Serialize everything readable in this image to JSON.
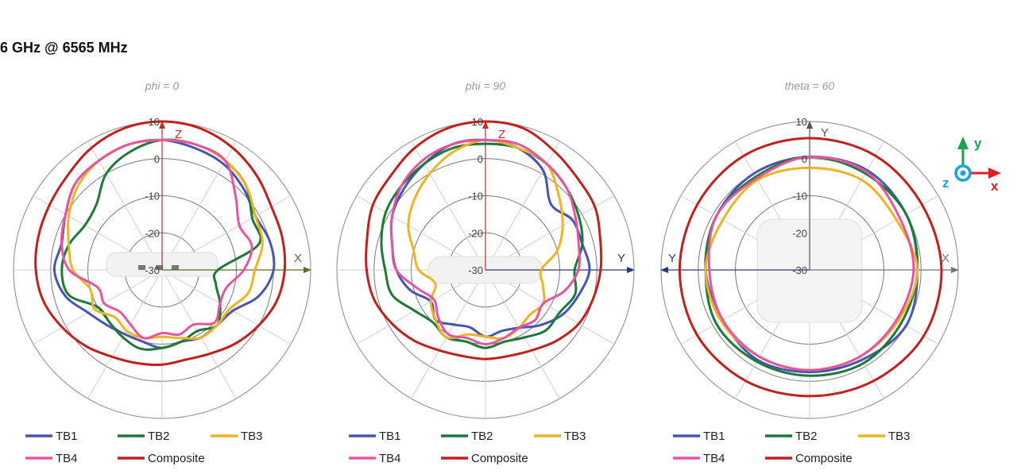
{
  "page_title": "6 GHz @ 6565 MHz",
  "colors": {
    "TB1": "#4656b0",
    "TB2": "#1b7a36",
    "TB3": "#f0b323",
    "TB4": "#e8559e",
    "Composite": "#c21f1f"
  },
  "chart_data": [
    {
      "type": "polar",
      "title": "phi = 0",
      "radial_ticks": [
        "10",
        "0",
        "-10",
        "-20",
        "-30"
      ],
      "rlim": [
        -30,
        10
      ],
      "axes": {
        "up": "Z",
        "right": "X"
      },
      "angle_convention": "degrees clockwise from up axis, evenly spaced",
      "series": [
        {
          "name": "TB1",
          "values": [
            5,
            4,
            3,
            1,
            -1,
            0,
            0,
            -3,
            -8,
            -9,
            -9,
            -10,
            -9,
            -10,
            -10,
            -9,
            -7,
            -3,
            -1,
            -2,
            0,
            3,
            4,
            5
          ]
        },
        {
          "name": "TB2",
          "values": [
            5,
            5,
            4,
            2,
            -2,
            -3,
            -15,
            -15,
            -12,
            -9,
            -11,
            -10,
            -9,
            -8,
            -9,
            -10,
            -10,
            -4,
            -3,
            -4,
            -6,
            -5,
            0,
            3
          ]
        },
        {
          "name": "TB3",
          "values": [
            5,
            5,
            4,
            2,
            -1,
            -2,
            -5,
            -6,
            -9,
            -9,
            -9,
            -11,
            -12,
            -11,
            -11,
            -12,
            -9,
            -10,
            -6,
            -4,
            -1,
            2,
            4,
            5
          ]
        },
        {
          "name": "TB4",
          "values": [
            5,
            5,
            4,
            -2,
            -6,
            -5,
            -8,
            -12,
            -12,
            -10,
            -13,
            -12,
            -13,
            -11,
            -13,
            -14,
            -12,
            -12,
            -5,
            -2,
            0,
            3,
            4,
            5
          ]
        },
        {
          "name": "Composite",
          "values": [
            10,
            9.5,
            8,
            6,
            4,
            3.5,
            3,
            2,
            0,
            -2,
            -4,
            -5,
            -4.5,
            -4,
            -3,
            -1,
            1,
            3,
            4,
            4.5,
            5,
            6,
            8,
            9.5
          ]
        }
      ]
    },
    {
      "type": "polar",
      "title": "phi = 90",
      "radial_ticks": [
        "10",
        "0",
        "-10",
        "-20",
        "-30"
      ],
      "rlim": [
        -30,
        10
      ],
      "axes": {
        "up": "Z",
        "right": "Y"
      },
      "angle_convention": "degrees clockwise from up axis, evenly spaced",
      "series": [
        {
          "name": "TB1",
          "values": [
            5,
            4,
            1,
            -5,
            -3,
            -3,
            -2,
            -4,
            -6,
            -9,
            -12,
            -13,
            -12,
            -14,
            -13,
            -11,
            -13,
            -9,
            -6,
            -4,
            -1,
            1,
            3,
            5
          ]
        },
        {
          "name": "TB2",
          "values": [
            4,
            4,
            3,
            1,
            -1,
            -3,
            -6,
            -5,
            -7,
            -7,
            -9,
            -10,
            -9,
            -10,
            -9,
            -10,
            -8,
            -4,
            -3,
            -1,
            1,
            2,
            3,
            4
          ]
        },
        {
          "name": "TB3",
          "values": [
            5,
            4,
            3,
            -2,
            -6,
            -10,
            -15,
            -14,
            -12,
            -13,
            -12,
            -11,
            -12,
            -12,
            -9,
            -11,
            -13,
            -16,
            -12,
            -10,
            -6,
            -3,
            0,
            3
          ]
        },
        {
          "name": "TB4",
          "values": [
            5,
            5,
            3,
            1,
            -2,
            -4,
            -5,
            -8,
            -12,
            -11,
            -12,
            -11,
            -10,
            -11,
            -10,
            -12,
            -14,
            -11,
            -6,
            -4,
            -1,
            2,
            4,
            5
          ]
        },
        {
          "name": "Composite",
          "values": [
            10,
            9.5,
            7,
            5,
            4,
            2,
            1,
            0,
            -1,
            -3,
            -5,
            -6,
            -6,
            -6,
            -5,
            -3,
            -1,
            1,
            2,
            3,
            5,
            6,
            8,
            9.5
          ]
        }
      ]
    },
    {
      "type": "polar",
      "title": "theta = 60",
      "radial_ticks": [
        "10",
        "0",
        "-10",
        "-20",
        "-30"
      ],
      "rlim": [
        -30,
        10
      ],
      "axes": {
        "up": "Y",
        "right": "X",
        "left": "Y"
      },
      "angle_convention": "degrees clockwise from up axis, evenly spaced",
      "series": [
        {
          "name": "TB1",
          "values": [
            0.5,
            1,
            0,
            -1,
            0,
            -2,
            -2.5,
            -2,
            -3,
            -2,
            -1,
            0
          ]
        },
        {
          "name": "TB2",
          "values": [
            0.5,
            0,
            0,
            -1,
            -1.5,
            -1,
            -1.5,
            -1.5,
            -1,
            -2,
            -1,
            -1
          ]
        },
        {
          "name": "TB3",
          "values": [
            -2.5,
            -2,
            -3,
            -1,
            -2.5,
            -3,
            -3,
            -3,
            -2.5,
            -2,
            -3,
            -2
          ]
        },
        {
          "name": "TB4",
          "values": [
            0.5,
            0.5,
            -2,
            -2,
            -3,
            -3,
            -3,
            -3,
            -3,
            -3,
            -1,
            -1.5
          ]
        },
        {
          "name": "Composite",
          "values": [
            5.5,
            5.5,
            5,
            5.5,
            5.5,
            4.5,
            4,
            4.5,
            5,
            5,
            5,
            5.5
          ]
        }
      ]
    }
  ],
  "legend": [
    "TB1",
    "TB2",
    "TB3",
    "TB4",
    "Composite"
  ],
  "orientation_icon": {
    "x": "x",
    "y": "y",
    "z": "z"
  }
}
